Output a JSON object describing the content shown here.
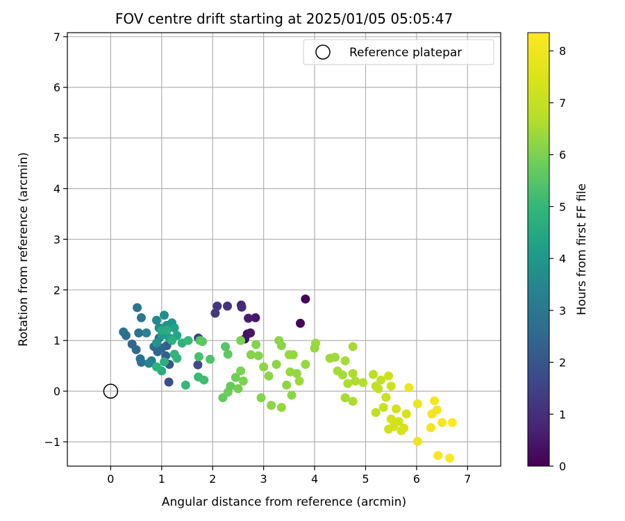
{
  "chart_data": {
    "type": "scatter",
    "title": "FOV centre drift starting at 2025/01/05 05:05:47",
    "xlabel": "Angular distance from reference (arcmin)",
    "ylabel": "Rotation from reference (arcmin)",
    "xlim": [
      -0.85,
      7.65
    ],
    "ylim": [
      -1.48,
      7.08
    ],
    "xticks": [
      0,
      1,
      2,
      3,
      4,
      5,
      6,
      7
    ],
    "yticks": [
      -1,
      0,
      1,
      2,
      3,
      4,
      5,
      6,
      7
    ],
    "xtick_labels": [
      "0",
      "1",
      "2",
      "3",
      "4",
      "5",
      "6",
      "7"
    ],
    "ytick_labels": [
      "−1",
      "0",
      "1",
      "2",
      "3",
      "4",
      "5",
      "6",
      "7"
    ],
    "grid": true,
    "legend": {
      "position": "top-right",
      "label": "Reference platepar"
    },
    "reference_point": {
      "x": 0,
      "y": 0
    },
    "colorbar": {
      "label": "Hours from first FF file",
      "range": [
        0,
        8.35
      ],
      "ticks": [
        0,
        1,
        2,
        3,
        4,
        5,
        6,
        7,
        8
      ],
      "tick_labels": [
        "0",
        "1",
        "2",
        "3",
        "4",
        "5",
        "6",
        "7",
        "8"
      ],
      "colormap": "viridis"
    },
    "points": [
      [
        3.72,
        1.34,
        0.1
      ],
      [
        3.82,
        1.82,
        0.1
      ],
      [
        2.68,
        1.13,
        0.3
      ],
      [
        2.63,
        1.03,
        0.4
      ],
      [
        2.74,
        1.15,
        0.4
      ],
      [
        2.84,
        1.45,
        0.5
      ],
      [
        2.7,
        1.44,
        0.6
      ],
      [
        2.56,
        1.7,
        0.8
      ],
      [
        2.57,
        1.66,
        0.9
      ],
      [
        2.29,
        1.68,
        1.1
      ],
      [
        2.09,
        1.68,
        1.2
      ],
      [
        2.05,
        1.54,
        1.3
      ],
      [
        1.72,
        1.05,
        1.5
      ],
      [
        1.71,
        0.52,
        1.7
      ],
      [
        1.14,
        0.18,
        1.8
      ],
      [
        1.15,
        0.53,
        2.0
      ],
      [
        1.1,
        0.9,
        2.2
      ],
      [
        1.08,
        0.7,
        2.3
      ],
      [
        1.0,
        0.85,
        2.4
      ],
      [
        0.92,
        0.78,
        2.5
      ],
      [
        0.85,
        0.88,
        2.6
      ],
      [
        0.95,
        1.05,
        2.7
      ],
      [
        0.42,
        0.93,
        2.4
      ],
      [
        0.5,
        0.82,
        2.6
      ],
      [
        0.6,
        0.57,
        2.7
      ],
      [
        0.58,
        0.64,
        2.8
      ],
      [
        0.52,
        1.65,
        2.9
      ],
      [
        0.6,
        1.45,
        3.0
      ],
      [
        0.25,
        1.17,
        2.8
      ],
      [
        0.3,
        1.1,
        2.7
      ],
      [
        0.55,
        1.15,
        2.8
      ],
      [
        0.8,
        0.6,
        3.2
      ],
      [
        0.75,
        0.55,
        3.4
      ],
      [
        0.7,
        1.15,
        3.3
      ],
      [
        0.9,
        1.4,
        3.5
      ],
      [
        0.95,
        1.25,
        3.6
      ],
      [
        1.05,
        1.5,
        3.7
      ],
      [
        1.1,
        1.3,
        3.8
      ],
      [
        1.2,
        1.35,
        3.9
      ],
      [
        0.9,
        0.95,
        3.9
      ],
      [
        1.0,
        1.1,
        4.0
      ],
      [
        1.15,
        1.05,
        4.2
      ],
      [
        1.25,
        1.25,
        4.3
      ],
      [
        1.3,
        1.1,
        4.4
      ],
      [
        1.0,
        1.2,
        4.5
      ],
      [
        1.1,
        1.2,
        4.6
      ],
      [
        1.2,
        1.0,
        4.7
      ],
      [
        1.4,
        0.95,
        4.8
      ],
      [
        1.3,
        0.65,
        4.9
      ],
      [
        1.0,
        0.4,
        4.6
      ],
      [
        1.05,
        0.58,
        4.7
      ],
      [
        0.9,
        0.48,
        4.8
      ],
      [
        1.25,
        0.73,
        4.9
      ],
      [
        1.52,
        1.0,
        5.0
      ],
      [
        1.47,
        0.12,
        5.0
      ],
      [
        1.72,
        0.28,
        5.1
      ],
      [
        1.83,
        0.22,
        5.2
      ],
      [
        1.73,
        0.68,
        5.3
      ],
      [
        1.95,
        0.63,
        5.4
      ],
      [
        1.75,
        1.0,
        5.5
      ],
      [
        1.8,
        0.98,
        5.6
      ],
      [
        2.25,
        0.88,
        5.5
      ],
      [
        2.3,
        0.73,
        5.6
      ],
      [
        2.2,
        -0.13,
        5.7
      ],
      [
        2.3,
        -0.02,
        5.8
      ],
      [
        2.35,
        0.1,
        5.7
      ],
      [
        2.45,
        0.27,
        5.8
      ],
      [
        2.5,
        0.05,
        5.9
      ],
      [
        2.55,
        0.4,
        6.0
      ],
      [
        2.6,
        0.2,
        6.0
      ],
      [
        2.55,
        1.0,
        6.0
      ],
      [
        2.75,
        0.72,
        6.1
      ],
      [
        2.85,
        0.92,
        6.1
      ],
      [
        2.9,
        0.7,
        6.1
      ],
      [
        2.95,
        -0.13,
        6.1
      ],
      [
        3.0,
        0.48,
        6.2
      ],
      [
        3.1,
        0.3,
        6.2
      ],
      [
        3.15,
        -0.28,
        6.2
      ],
      [
        3.25,
        0.53,
        6.2
      ],
      [
        3.3,
        1.0,
        6.2
      ],
      [
        3.35,
        0.9,
        6.2
      ],
      [
        3.35,
        -0.32,
        6.3
      ],
      [
        3.45,
        0.12,
        6.2
      ],
      [
        3.5,
        0.72,
        6.3
      ],
      [
        3.52,
        0.38,
        6.3
      ],
      [
        3.58,
        0.72,
        6.3
      ],
      [
        3.55,
        -0.08,
        6.2
      ],
      [
        3.65,
        0.35,
        6.3
      ],
      [
        3.7,
        0.2,
        6.4
      ],
      [
        3.82,
        0.53,
        6.3
      ],
      [
        4.02,
        0.95,
        6.4
      ],
      [
        4.0,
        0.85,
        6.3
      ],
      [
        4.3,
        0.65,
        6.4
      ],
      [
        4.4,
        0.67,
        6.4
      ],
      [
        4.45,
        0.4,
        6.5
      ],
      [
        4.55,
        0.32,
        6.5
      ],
      [
        4.6,
        0.6,
        6.5
      ],
      [
        4.6,
        -0.13,
        6.5
      ],
      [
        4.65,
        0.15,
        6.6
      ],
      [
        4.75,
        0.88,
        6.5
      ],
      [
        4.75,
        0.35,
        6.6
      ],
      [
        4.8,
        0.2,
        6.6
      ],
      [
        4.75,
        -0.2,
        6.6
      ],
      [
        4.95,
        0.17,
        6.7
      ],
      [
        5.15,
        0.33,
        6.8
      ],
      [
        5.2,
        0.1,
        6.9
      ],
      [
        5.2,
        -0.42,
        6.9
      ],
      [
        5.25,
        0.05,
        7.0
      ],
      [
        5.3,
        0.22,
        7.0
      ],
      [
        5.35,
        -0.32,
        7.1
      ],
      [
        5.4,
        -0.12,
        7.1
      ],
      [
        5.45,
        -0.75,
        7.2
      ],
      [
        5.45,
        0.3,
        7.2
      ],
      [
        5.5,
        0.1,
        7.2
      ],
      [
        5.5,
        -0.55,
        7.3
      ],
      [
        5.55,
        -0.7,
        7.3
      ],
      [
        5.6,
        -0.35,
        7.3
      ],
      [
        5.65,
        -0.6,
        7.3
      ],
      [
        5.7,
        -0.78,
        7.4
      ],
      [
        5.75,
        -0.73,
        7.4
      ],
      [
        5.8,
        -0.45,
        7.4
      ],
      [
        5.85,
        0.07,
        7.9
      ],
      [
        6.02,
        -0.25,
        7.9
      ],
      [
        6.02,
        -0.99,
        8.0
      ],
      [
        6.28,
        -0.72,
        8.0
      ],
      [
        6.3,
        -0.45,
        8.1
      ],
      [
        6.35,
        -0.19,
        8.1
      ],
      [
        6.4,
        -0.37,
        8.1
      ],
      [
        6.42,
        -1.27,
        8.2
      ],
      [
        6.5,
        -0.62,
        8.2
      ],
      [
        6.65,
        -1.32,
        8.3
      ],
      [
        6.7,
        -0.62,
        8.3
      ]
    ]
  }
}
